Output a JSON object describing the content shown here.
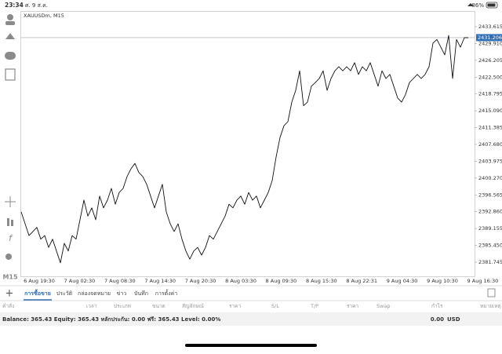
{
  "status_bar": {
    "time": "23:34",
    "date": "ศ. 9 ส.ค.",
    "battery": "86%"
  },
  "chart_data": {
    "type": "line",
    "symbol_label": "XAUUSDm, M15",
    "timeframe": "M15",
    "color": "#111111",
    "grid": false,
    "values": [
      2392.8,
      2390.2,
      2387.6,
      2388.5,
      2389.4,
      2386.8,
      2387.6,
      2385.0,
      2386.8,
      2384.2,
      2381.6,
      2385.9,
      2384.2,
      2387.6,
      2386.8,
      2391.1,
      2395.4,
      2391.9,
      2393.7,
      2391.1,
      2396.3,
      2393.7,
      2395.4,
      2398.0,
      2394.5,
      2397.1,
      2398.0,
      2400.6,
      2402.3,
      2403.5,
      2401.5,
      2400.6,
      2398.9,
      2396.3,
      2393.7,
      2396.3,
      2398.9,
      2392.8,
      2390.2,
      2388.5,
      2390.2,
      2386.8,
      2384.2,
      2382.4,
      2384.2,
      2385.0,
      2383.3,
      2385.0,
      2387.6,
      2386.8,
      2388.5,
      2390.2,
      2391.9,
      2394.5,
      2393.7,
      2395.4,
      2396.3,
      2394.5,
      2397.1,
      2395.4,
      2396.3,
      2393.7,
      2395.4,
      2397.1,
      2399.7,
      2404.9,
      2409.2,
      2411.8,
      2412.7,
      2417.0,
      2419.6,
      2423.9,
      2416.2,
      2417.0,
      2420.5,
      2421.3,
      2422.2,
      2423.9,
      2419.6,
      2422.2,
      2423.9,
      2424.8,
      2423.9,
      2424.8,
      2423.9,
      2425.7,
      2423.1,
      2424.8,
      2423.9,
      2425.7,
      2423.1,
      2420.5,
      2423.9,
      2422.2,
      2423.1,
      2420.5,
      2417.9,
      2417.0,
      2418.7,
      2421.3,
      2422.2,
      2423.1,
      2422.2,
      2423.1,
      2424.8,
      2430.0,
      2430.8,
      2429.1,
      2427.4,
      2431.7,
      2422.2,
      2430.8,
      2429.1,
      2431.2,
      2431.2
    ],
    "ylim": [
      2378.63,
      2436.9
    ],
    "yticks": [
      2433.615,
      {
        "value": 2429.91,
        "label": "2429.910"
      },
      2426.205,
      {
        "value": 2422.5,
        "label": "2422.500"
      },
      2418.795,
      {
        "value": 2415.09,
        "label": "2415.090"
      },
      2411.385,
      {
        "value": 2407.68,
        "label": "2407.680"
      },
      2403.975,
      {
        "value": 2400.27,
        "label": "2400.270"
      },
      2396.565,
      {
        "value": 2392.86,
        "label": "2392.860"
      },
      2389.155,
      {
        "value": 2385.45,
        "label": "2385.450"
      },
      2381.745
    ],
    "current_price": 2431.206,
    "x_labels": [
      "6 Aug 19:30",
      "7 Aug 02:30",
      "7 Aug 08:30",
      "7 Aug 14:30",
      "7 Aug 20:30",
      "8 Aug 03:30",
      "8 Aug 09:30",
      "8 Aug 15:30",
      "8 Aug 22:31",
      "9 Aug 04:30",
      "9 Aug 10:30",
      "9 Aug 16:30"
    ]
  },
  "tabs": [
    "การซื้อขาย",
    "ประวัติ",
    "กล่องจดหมาย",
    "ข่าว",
    "บันทึก",
    "การตั้งค่า"
  ],
  "columns": [
    "คำสั่ง",
    "เวลา",
    "ประเภท",
    "ขนาด",
    "สัญลักษณ์",
    "ราคา",
    "S/L",
    "T/P",
    "ราคา",
    "Swap",
    "กำไร",
    "หมายเหตุ"
  ],
  "balance": {
    "summary": "Balance: 365.43 Equity: 365.43 หลักประกัน: 0.00 ฟรี: 365.43 Level: 0.00%",
    "profit": "0.00",
    "currency": "USD"
  }
}
